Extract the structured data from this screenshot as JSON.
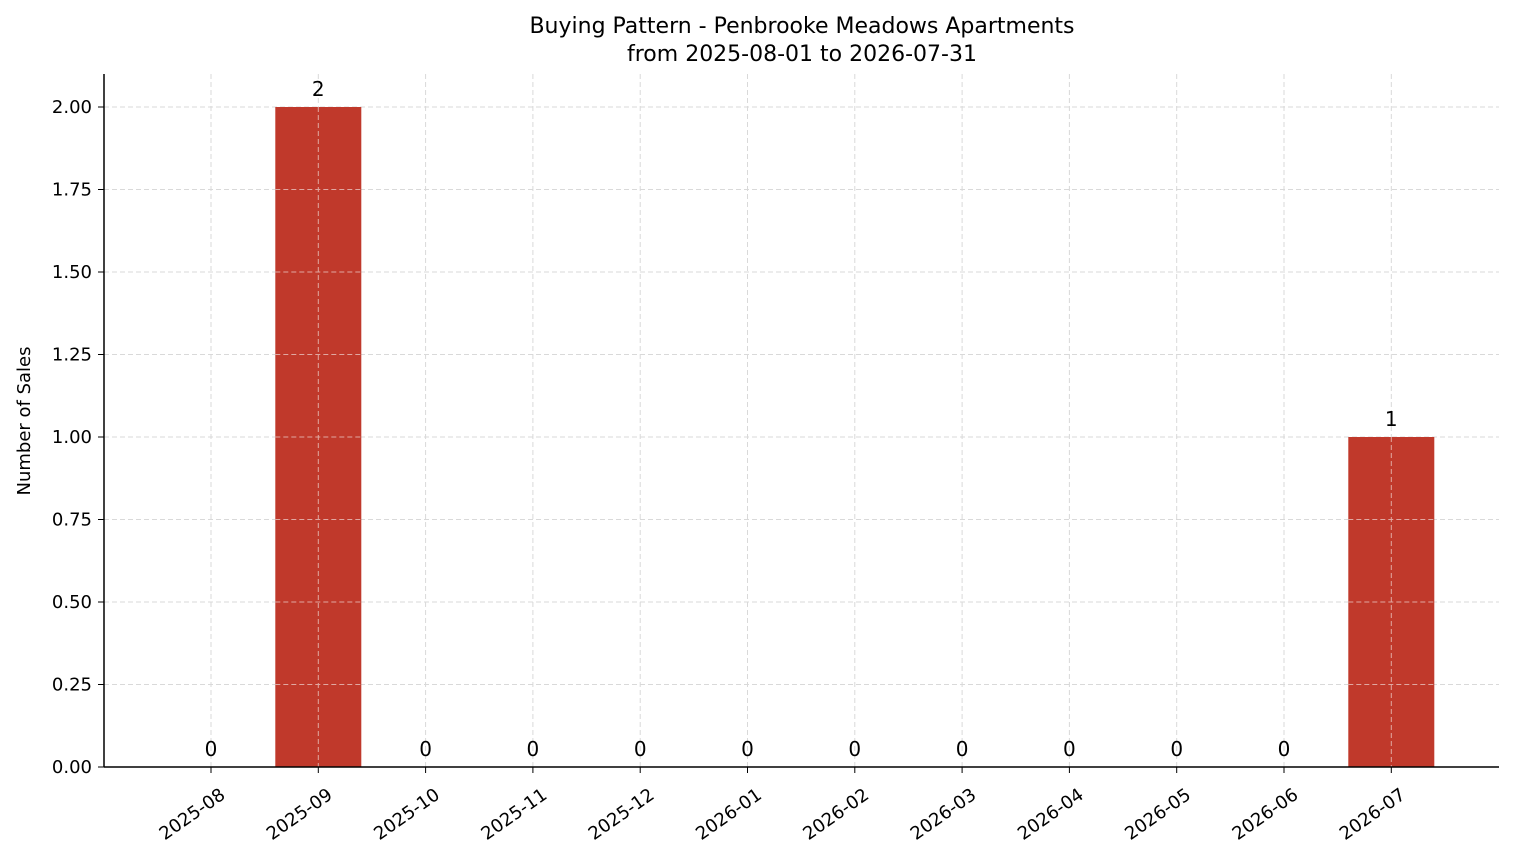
{
  "chart_data": {
    "type": "bar",
    "title": "Buying Pattern - Penbrooke Meadows Apartments",
    "subtitle": "from 2025-08-01 to 2026-07-31",
    "xlabel": "",
    "ylabel": "Number of Sales",
    "categories": [
      "2025-08",
      "2025-09",
      "2025-10",
      "2025-11",
      "2025-12",
      "2026-01",
      "2026-02",
      "2026-03",
      "2026-04",
      "2026-05",
      "2026-06",
      "2026-07"
    ],
    "values": [
      0,
      2,
      0,
      0,
      0,
      0,
      0,
      0,
      0,
      0,
      0,
      1
    ],
    "data_labels": [
      "0",
      "2",
      "0",
      "0",
      "0",
      "0",
      "0",
      "0",
      "0",
      "0",
      "0",
      "1"
    ],
    "ylim": [
      0,
      2.1
    ],
    "yticks": [
      "0.00",
      "0.25",
      "0.50",
      "0.75",
      "1.00",
      "1.25",
      "1.50",
      "1.75",
      "2.00"
    ],
    "grid": true,
    "legend": "none",
    "bar_color": "#c0392b"
  }
}
